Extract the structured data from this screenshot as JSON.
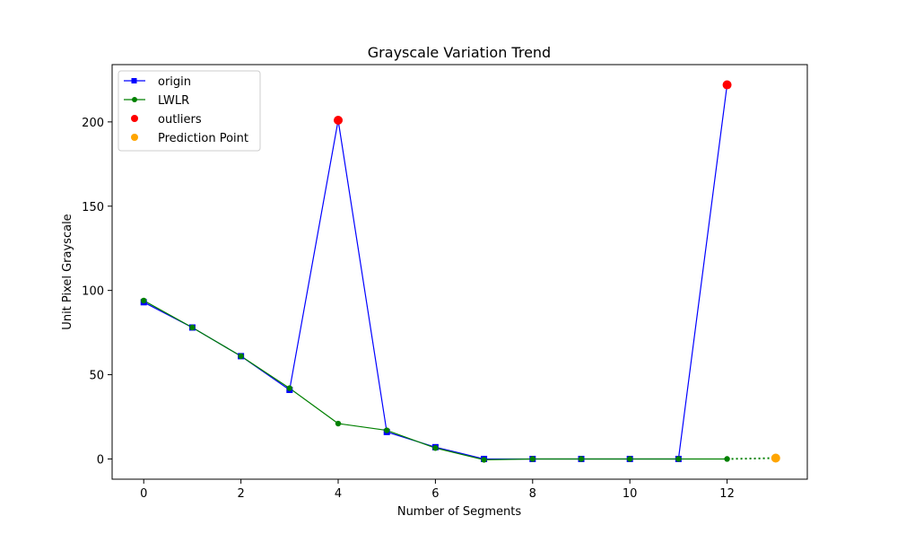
{
  "chart_data": {
    "type": "line",
    "title": "Grayscale Variation Trend",
    "xlabel": "Number of Segments",
    "ylabel": "Unit Pixel Grayscale",
    "xlim": [
      -0.65,
      13.65
    ],
    "ylim": [
      -12,
      234
    ],
    "xticks": [
      0,
      2,
      4,
      6,
      8,
      10,
      12
    ],
    "yticks": [
      0,
      50,
      100,
      150,
      200
    ],
    "grid": false,
    "legend_position": "top-left",
    "series": [
      {
        "name": "origin",
        "color": "#0000ff",
        "marker": "square",
        "x": [
          0,
          1,
          2,
          3,
          4,
          5,
          6,
          7,
          8,
          9,
          10,
          11,
          12
        ],
        "y": [
          93,
          78,
          61,
          41,
          201,
          16,
          7,
          0,
          0,
          0,
          0,
          0,
          222
        ]
      },
      {
        "name": "LWLR",
        "color": "#008000",
        "marker": "circle",
        "x": [
          0,
          1,
          2,
          3,
          4,
          5,
          6,
          7,
          8,
          9,
          10,
          11,
          12
        ],
        "y": [
          94,
          78,
          61,
          42,
          21,
          17,
          6.5,
          -0.5,
          0,
          0,
          0,
          0,
          0
        ]
      },
      {
        "name": "outliers",
        "color": "#ff0000",
        "marker": "circle-large",
        "x": [
          4,
          12
        ],
        "y": [
          201,
          222
        ]
      },
      {
        "name": "Prediction Point",
        "color": "#ffa500",
        "marker": "circle-large",
        "x": [
          13
        ],
        "y": [
          0.5
        ]
      }
    ],
    "prediction_link": {
      "from_x": 12,
      "from_y": 0,
      "to_x": 13,
      "to_y": 0.5,
      "color": "#008000",
      "style": "dotted"
    }
  }
}
